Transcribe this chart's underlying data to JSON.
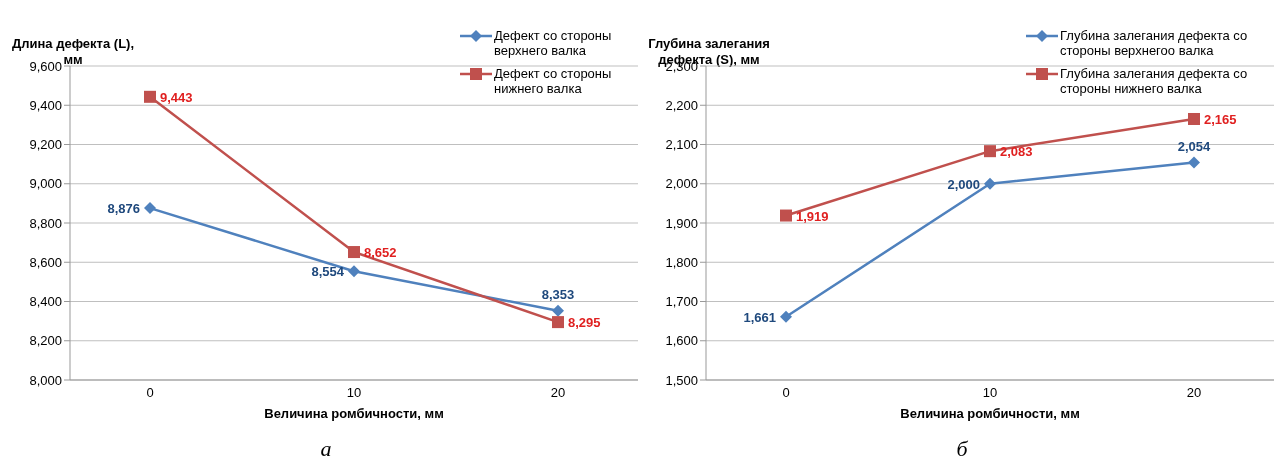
{
  "chart_data": [
    {
      "type": "line",
      "ylabel": "Длина дефекта (L), мм",
      "xlabel": "Величина ромбичности, мм",
      "categories": [
        "0",
        "10",
        "20"
      ],
      "series": [
        {
          "name": "Дефект со стороны верхнего валка",
          "color": "#4f81bd",
          "marker": "diamond",
          "values": [
            8876,
            8554,
            8353
          ],
          "value_labels": [
            "8,876",
            "8,554",
            "8,353"
          ]
        },
        {
          "name": "Дефект со стороны нижнего валка",
          "color": "#c0504d",
          "marker": "square",
          "values": [
            9443,
            8652,
            8295
          ],
          "value_labels": [
            "9,443",
            "8,652",
            "8,295"
          ]
        }
      ],
      "ylim": [
        8000,
        9600
      ],
      "yticks": [
        {
          "value": 8000,
          "label": "8,000"
        },
        {
          "value": 8200,
          "label": "8,200"
        },
        {
          "value": 8400,
          "label": "8,400"
        },
        {
          "value": 8600,
          "label": "8,600"
        },
        {
          "value": 8800,
          "label": "8,800"
        },
        {
          "value": 9000,
          "label": "9,000"
        },
        {
          "value": 9200,
          "label": "9,200"
        },
        {
          "value": 9400,
          "label": "9,400"
        },
        {
          "value": 9600,
          "label": "9,600"
        }
      ],
      "grid": "y",
      "legend": "top right",
      "annotations": [
        "а"
      ]
    },
    {
      "type": "line",
      "ylabel": "Глубина залегания дефекта (S), мм",
      "xlabel": "Величина ромбичности, мм",
      "categories": [
        "0",
        "10",
        "20"
      ],
      "series": [
        {
          "name": "Глубина залегания дефекта со стороны верхнегоо валка",
          "color": "#4f81bd",
          "marker": "diamond",
          "values": [
            1661,
            2000,
            2054
          ],
          "value_labels": [
            "1,661",
            "2,000",
            "2,054"
          ]
        },
        {
          "name": "Глубина залегания дефекта со стороны нижнего валка",
          "color": "#c0504d",
          "marker": "square",
          "values": [
            1919,
            2083,
            2165
          ],
          "value_labels": [
            "1,919",
            "2,083",
            "2,165"
          ]
        }
      ],
      "ylim": [
        1500,
        2300
      ],
      "yticks": [
        {
          "value": 1500,
          "label": "1,500"
        },
        {
          "value": 1600,
          "label": "1,600"
        },
        {
          "value": 1700,
          "label": "1,700"
        },
        {
          "value": 1800,
          "label": "1,800"
        },
        {
          "value": 1900,
          "label": "1,900"
        },
        {
          "value": 2000,
          "label": "2,000"
        },
        {
          "value": 2100,
          "label": "2,100"
        },
        {
          "value": 2200,
          "label": "2,200"
        },
        {
          "value": 2300,
          "label": "2,300"
        }
      ],
      "grid": "y",
      "legend": "top right",
      "annotations": [
        "б"
      ]
    }
  ]
}
